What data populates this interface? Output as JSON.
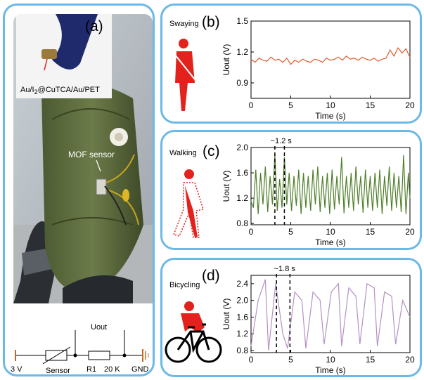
{
  "panel_a": {
    "label": "(a)",
    "inset_caption": "Au/I<sub>2</sub>@CuTCA/Au/PET",
    "inset_caption_text": "Au/I2@CuTCA/Au/PET",
    "sensor_label": "MOF sensor",
    "circuit": {
      "voltage": "3 V",
      "sensor": "Sensor",
      "resistor": "R1",
      "resistance": "20 K",
      "ground": "GND",
      "output": "Uout"
    }
  },
  "colors": {
    "border": "#6db9e6",
    "swaying": "#e25a2a",
    "walking": "#4f7f2a",
    "bicycling": "#b591c4",
    "figure": "#e3221e"
  },
  "chart_data": [
    {
      "type": "line",
      "panel": "(b)",
      "activity": "Swaying",
      "xlabel": "Time (s)",
      "ylabel": "Uout (V)",
      "xlim": [
        0,
        20
      ],
      "ylim": [
        0.75,
        1.5
      ],
      "xticks": [
        0,
        5,
        10,
        15,
        20
      ],
      "yticks": [
        0.9,
        1.2,
        1.5
      ],
      "ytick_labels": [
        "0.9",
        "1.2",
        "1.5"
      ],
      "series": [
        {
          "x": [
            0,
            0.5,
            1,
            1.5,
            2,
            2.5,
            3,
            3.5,
            4,
            4.5,
            5,
            5.5,
            6,
            6.5,
            7,
            7.5,
            8,
            8.5,
            9,
            9.5,
            10,
            10.5,
            11,
            11.5,
            12,
            12.5,
            13,
            13.5,
            14,
            14.5,
            15,
            15.5,
            16,
            16.5,
            17,
            17.5,
            18,
            18.5,
            19,
            19.5,
            20
          ],
          "values": [
            1.13,
            1.1,
            1.14,
            1.12,
            1.11,
            1.15,
            1.12,
            1.13,
            1.1,
            1.14,
            1.08,
            1.12,
            1.1,
            1.13,
            1.11,
            1.1,
            1.13,
            1.12,
            1.1,
            1.14,
            1.12,
            1.13,
            1.15,
            1.12,
            1.16,
            1.13,
            1.14,
            1.12,
            1.15,
            1.13,
            1.12,
            1.14,
            1.11,
            1.13,
            1.14,
            1.22,
            1.16,
            1.24,
            1.19,
            1.23,
            1.15
          ]
        }
      ]
    },
    {
      "type": "line",
      "panel": "(c)",
      "activity": "Walking",
      "annotation": "~1.2 s",
      "marker_x": [
        3.0,
        4.2
      ],
      "xlabel": "Time (s)",
      "ylabel": "Uout (V)",
      "xlim": [
        0,
        20
      ],
      "ylim": [
        0.78,
        2.0
      ],
      "xticks": [
        0,
        5,
        10,
        15,
        20
      ],
      "yticks": [
        0.8,
        1.2,
        1.6,
        2.0
      ],
      "ytick_labels": [
        "0.8",
        "1.2",
        "1.6",
        "2.0"
      ],
      "series": [
        {
          "x": [
            0,
            0.3,
            0.6,
            0.9,
            1.2,
            1.5,
            1.8,
            2.1,
            2.4,
            2.7,
            3.0,
            3.3,
            3.6,
            3.9,
            4.2,
            4.5,
            4.8,
            5.1,
            5.4,
            5.7,
            6.0,
            6.3,
            6.6,
            6.9,
            7.2,
            7.5,
            7.8,
            8.1,
            8.4,
            8.7,
            9.0,
            9.3,
            9.6,
            9.9,
            10.2,
            10.5,
            10.8,
            11.1,
            11.4,
            11.7,
            12.0,
            12.3,
            12.6,
            12.9,
            13.2,
            13.5,
            13.8,
            14.1,
            14.4,
            14.7,
            15.0,
            15.3,
            15.6,
            15.9,
            16.2,
            16.5,
            16.8,
            17.1,
            17.4,
            17.7,
            18.0,
            18.3,
            18.6,
            18.9,
            19.2,
            19.5,
            19.8,
            20.0
          ],
          "values": [
            1.15,
            1.05,
            1.65,
            0.95,
            1.6,
            1.1,
            1.7,
            0.98,
            1.55,
            1.1,
            1.9,
            1.0,
            1.5,
            1.05,
            1.85,
            1.1,
            1.6,
            1.0,
            1.55,
            1.08,
            1.65,
            0.95,
            1.6,
            1.05,
            1.55,
            1.0,
            1.65,
            1.1,
            1.7,
            0.98,
            1.55,
            1.05,
            1.6,
            0.95,
            1.65,
            1.02,
            1.55,
            1.1,
            1.85,
            0.96,
            1.55,
            1.05,
            1.6,
            1.0,
            1.7,
            1.1,
            1.55,
            0.97,
            1.65,
            1.05,
            1.55,
            1.0,
            1.6,
            1.05,
            1.65,
            0.95,
            1.55,
            1.08,
            1.7,
            1.0,
            1.6,
            1.05,
            1.55,
            0.98,
            1.88,
            0.95,
            1.6,
            1.2
          ]
        }
      ]
    },
    {
      "type": "line",
      "panel": "(d)",
      "activity": "Bicycling",
      "annotation": "~1.8 s",
      "marker_x": [
        3.2,
        4.9
      ],
      "xlabel": "Time (s)",
      "ylabel": "Uout (V)",
      "xlim": [
        0,
        20
      ],
      "ylim": [
        0.75,
        2.6
      ],
      "xticks": [
        0,
        5,
        10,
        15,
        20
      ],
      "yticks": [
        0.8,
        1.2,
        1.6,
        2.0,
        2.4
      ],
      "ytick_labels": [
        "0.8",
        "1.2",
        "1.6",
        "2.0",
        "2.4"
      ],
      "series": [
        {
          "x": [
            0,
            0.9,
            1.8,
            2.2,
            3.1,
            4.0,
            4.6,
            5.5,
            6.4,
            6.9,
            7.8,
            8.7,
            9.2,
            10.1,
            11.0,
            11.4,
            12.3,
            13.2,
            13.7,
            14.6,
            15.5,
            15.9,
            16.8,
            17.7,
            18.2,
            19.1,
            20.0
          ],
          "values": [
            0.9,
            2.0,
            2.5,
            0.8,
            2.4,
            1.2,
            0.85,
            2.2,
            2.0,
            0.85,
            2.2,
            2.0,
            0.95,
            2.2,
            2.4,
            0.9,
            2.3,
            2.1,
            0.95,
            2.4,
            2.3,
            0.9,
            2.2,
            2.1,
            0.95,
            2.0,
            1.6
          ]
        }
      ]
    }
  ]
}
